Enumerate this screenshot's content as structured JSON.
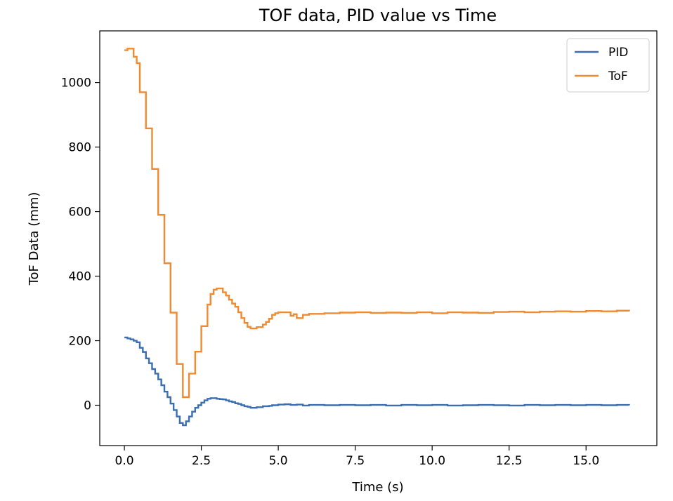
{
  "chart_data": {
    "type": "line",
    "title": "TOF data, PID value vs Time",
    "xlabel": "Time (s)",
    "ylabel": "ToF Data (mm)",
    "xlim": [
      -0.8,
      17.3
    ],
    "ylim": [
      -125,
      1160
    ],
    "xticks": [
      0.0,
      2.5,
      5.0,
      7.5,
      10.0,
      12.5,
      15.0
    ],
    "xtick_labels": [
      "0.0",
      "2.5",
      "5.0",
      "7.5",
      "10.0",
      "12.5",
      "15.0"
    ],
    "yticks": [
      0,
      200,
      400,
      600,
      800,
      1000
    ],
    "ytick_labels": [
      "0",
      "200",
      "400",
      "600",
      "800",
      "1000"
    ],
    "grid": false,
    "legend_position": "top-right",
    "series": [
      {
        "name": "PID",
        "color": "#3a6eb0",
        "points": [
          [
            0.0,
            210
          ],
          [
            0.1,
            207
          ],
          [
            0.2,
            204
          ],
          [
            0.3,
            200
          ],
          [
            0.4,
            195
          ],
          [
            0.5,
            178
          ],
          [
            0.6,
            165
          ],
          [
            0.7,
            145
          ],
          [
            0.8,
            130
          ],
          [
            0.9,
            112
          ],
          [
            1.0,
            98
          ],
          [
            1.1,
            80
          ],
          [
            1.2,
            62
          ],
          [
            1.3,
            42
          ],
          [
            1.4,
            25
          ],
          [
            1.5,
            5
          ],
          [
            1.6,
            -15
          ],
          [
            1.7,
            -35
          ],
          [
            1.8,
            -55
          ],
          [
            1.9,
            -62
          ],
          [
            2.0,
            -50
          ],
          [
            2.1,
            -35
          ],
          [
            2.2,
            -20
          ],
          [
            2.3,
            -8
          ],
          [
            2.4,
            0
          ],
          [
            2.5,
            8
          ],
          [
            2.6,
            15
          ],
          [
            2.7,
            20
          ],
          [
            2.8,
            22
          ],
          [
            2.9,
            22
          ],
          [
            3.0,
            20
          ],
          [
            3.1,
            19
          ],
          [
            3.2,
            18
          ],
          [
            3.3,
            15
          ],
          [
            3.4,
            12
          ],
          [
            3.5,
            10
          ],
          [
            3.6,
            6
          ],
          [
            3.7,
            4
          ],
          [
            3.8,
            0
          ],
          [
            3.9,
            -3
          ],
          [
            4.0,
            -5
          ],
          [
            4.1,
            -8
          ],
          [
            4.3,
            -6
          ],
          [
            4.5,
            -3
          ],
          [
            4.7,
            -2
          ],
          [
            4.8,
            0
          ],
          [
            5.0,
            2
          ],
          [
            5.2,
            3
          ],
          [
            5.4,
            1
          ],
          [
            5.6,
            2
          ],
          [
            5.8,
            -1
          ],
          [
            6.0,
            1
          ],
          [
            6.5,
            0
          ],
          [
            7.0,
            1
          ],
          [
            7.5,
            0
          ],
          [
            8.0,
            1
          ],
          [
            8.5,
            -1
          ],
          [
            9.0,
            1
          ],
          [
            9.5,
            0
          ],
          [
            10.0,
            1
          ],
          [
            10.5,
            -1
          ],
          [
            11.0,
            0
          ],
          [
            11.5,
            1
          ],
          [
            12.0,
            0
          ],
          [
            12.5,
            -1
          ],
          [
            13.0,
            1
          ],
          [
            13.5,
            0
          ],
          [
            14.0,
            1
          ],
          [
            14.5,
            0
          ],
          [
            15.0,
            1
          ],
          [
            15.5,
            0
          ],
          [
            16.0,
            1
          ],
          [
            16.4,
            0
          ]
        ]
      },
      {
        "name": "ToF",
        "color": "#f08a30",
        "points": [
          [
            0.0,
            1100
          ],
          [
            0.1,
            1105
          ],
          [
            0.3,
            1080
          ],
          [
            0.4,
            1060
          ],
          [
            0.5,
            970
          ],
          [
            0.7,
            858
          ],
          [
            0.9,
            732
          ],
          [
            1.1,
            590
          ],
          [
            1.3,
            440
          ],
          [
            1.5,
            287
          ],
          [
            1.7,
            128
          ],
          [
            1.9,
            25
          ],
          [
            2.1,
            98
          ],
          [
            2.3,
            166
          ],
          [
            2.5,
            245
          ],
          [
            2.7,
            312
          ],
          [
            2.8,
            345
          ],
          [
            2.9,
            358
          ],
          [
            3.0,
            362
          ],
          [
            3.1,
            362
          ],
          [
            3.2,
            350
          ],
          [
            3.3,
            340
          ],
          [
            3.4,
            327
          ],
          [
            3.5,
            315
          ],
          [
            3.6,
            305
          ],
          [
            3.7,
            288
          ],
          [
            3.8,
            270
          ],
          [
            3.9,
            255
          ],
          [
            4.0,
            243
          ],
          [
            4.1,
            238
          ],
          [
            4.3,
            242
          ],
          [
            4.5,
            250
          ],
          [
            4.6,
            258
          ],
          [
            4.7,
            268
          ],
          [
            4.8,
            280
          ],
          [
            4.9,
            285
          ],
          [
            5.0,
            288
          ],
          [
            5.2,
            288
          ],
          [
            5.4,
            277
          ],
          [
            5.5,
            282
          ],
          [
            5.6,
            270
          ],
          [
            5.8,
            280
          ],
          [
            6.0,
            283
          ],
          [
            6.5,
            285
          ],
          [
            7.0,
            287
          ],
          [
            7.5,
            288
          ],
          [
            8.0,
            286
          ],
          [
            8.5,
            287
          ],
          [
            9.0,
            286
          ],
          [
            9.5,
            288
          ],
          [
            10.0,
            285
          ],
          [
            10.5,
            288
          ],
          [
            11.0,
            287
          ],
          [
            11.5,
            286
          ],
          [
            12.0,
            289
          ],
          [
            12.5,
            290
          ],
          [
            13.0,
            288
          ],
          [
            13.5,
            290
          ],
          [
            14.0,
            291
          ],
          [
            14.5,
            290
          ],
          [
            15.0,
            292
          ],
          [
            15.5,
            291
          ],
          [
            16.0,
            293
          ],
          [
            16.4,
            291
          ]
        ]
      }
    ]
  }
}
